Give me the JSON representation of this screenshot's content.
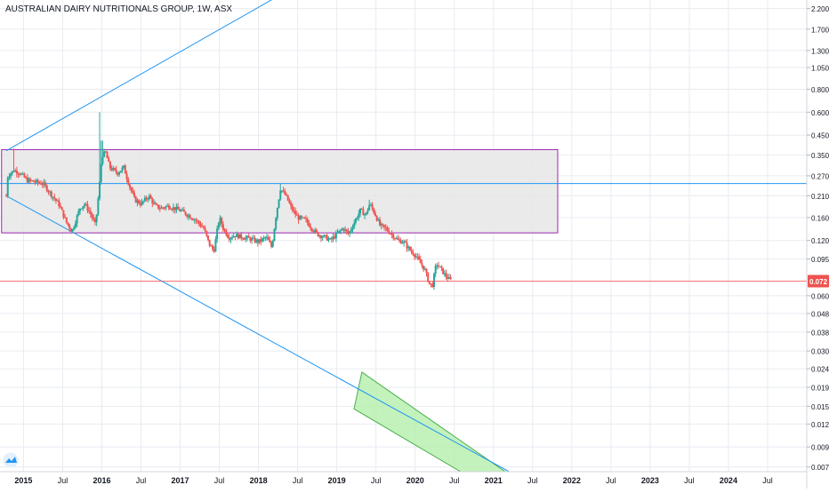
{
  "chart_data": {
    "type": "candlestick",
    "title": "AUSTRALIAN DAIRY NUTRITIONALS GROUP, 1W, ASX",
    "y_scale": "log",
    "ylim": [
      0.0066,
      2.45
    ],
    "xlim": [
      2014.7,
      2025.0
    ],
    "y_ticks": [
      {
        "v": 2.2,
        "label": "2.200"
      },
      {
        "v": 1.7,
        "label": "1.700"
      },
      {
        "v": 1.3,
        "label": "1.300"
      },
      {
        "v": 1.05,
        "label": "1.050"
      },
      {
        "v": 0.8,
        "label": "0.800"
      },
      {
        "v": 0.6,
        "label": "0.600"
      },
      {
        "v": 0.45,
        "label": "0.450"
      },
      {
        "v": 0.35,
        "label": "0.350"
      },
      {
        "v": 0.27,
        "label": "0.270"
      },
      {
        "v": 0.21,
        "label": "0.210"
      },
      {
        "v": 0.16,
        "label": "0.160"
      },
      {
        "v": 0.12,
        "label": "0.120"
      },
      {
        "v": 0.095,
        "label": "0.095"
      },
      {
        "v": 0.06,
        "label": "0.060"
      },
      {
        "v": 0.048,
        "label": "0.048"
      },
      {
        "v": 0.038,
        "label": "0.038"
      },
      {
        "v": 0.03,
        "label": "0.030"
      },
      {
        "v": 0.024,
        "label": "0.024"
      },
      {
        "v": 0.019,
        "label": "0.019"
      },
      {
        "v": 0.015,
        "label": "0.015"
      },
      {
        "v": 0.012,
        "label": "0.012"
      },
      {
        "v": 0.009,
        "label": "0.009"
      },
      {
        "v": 0.007,
        "label": "0.007"
      }
    ],
    "x_ticks": [
      {
        "t": 2015.0,
        "label": "2015"
      },
      {
        "t": 2015.5,
        "label": "Jul"
      },
      {
        "t": 2016.0,
        "label": "2016"
      },
      {
        "t": 2016.5,
        "label": "Jul"
      },
      {
        "t": 2017.0,
        "label": "2017"
      },
      {
        "t": 2017.5,
        "label": "Jul"
      },
      {
        "t": 2018.0,
        "label": "2018"
      },
      {
        "t": 2018.5,
        "label": "Jul"
      },
      {
        "t": 2019.0,
        "label": "2019"
      },
      {
        "t": 2019.5,
        "label": "Jul"
      },
      {
        "t": 2020.0,
        "label": "2020"
      },
      {
        "t": 2020.5,
        "label": "Jul"
      },
      {
        "t": 2021.0,
        "label": "2021"
      },
      {
        "t": 2021.5,
        "label": "Jul"
      },
      {
        "t": 2022.0,
        "label": "2022"
      },
      {
        "t": 2022.5,
        "label": "Jul"
      },
      {
        "t": 2023.0,
        "label": "2023"
      },
      {
        "t": 2023.5,
        "label": "Jul"
      },
      {
        "t": 2024.0,
        "label": "2024"
      },
      {
        "t": 2024.5,
        "label": "Jul"
      }
    ],
    "price_anchors": [
      [
        2014.78,
        0.21
      ],
      [
        2014.8,
        0.27
      ],
      [
        2014.88,
        0.29
      ],
      [
        2014.95,
        0.28
      ],
      [
        2015.05,
        0.255
      ],
      [
        2015.15,
        0.25
      ],
      [
        2015.25,
        0.245
      ],
      [
        2015.35,
        0.215
      ],
      [
        2015.45,
        0.19
      ],
      [
        2015.55,
        0.15
      ],
      [
        2015.62,
        0.135
      ],
      [
        2015.72,
        0.18
      ],
      [
        2015.78,
        0.19
      ],
      [
        2015.85,
        0.17
      ],
      [
        2015.92,
        0.145
      ],
      [
        2015.97,
        0.24
      ],
      [
        2016.0,
        0.35
      ],
      [
        2016.05,
        0.36
      ],
      [
        2016.1,
        0.3
      ],
      [
        2016.2,
        0.28
      ],
      [
        2016.28,
        0.3
      ],
      [
        2016.35,
        0.24
      ],
      [
        2016.42,
        0.2
      ],
      [
        2016.5,
        0.19
      ],
      [
        2016.6,
        0.21
      ],
      [
        2016.68,
        0.185
      ],
      [
        2016.75,
        0.18
      ],
      [
        2016.85,
        0.185
      ],
      [
        2016.92,
        0.18
      ],
      [
        2017.0,
        0.175
      ],
      [
        2017.1,
        0.165
      ],
      [
        2017.2,
        0.155
      ],
      [
        2017.3,
        0.14
      ],
      [
        2017.37,
        0.115
      ],
      [
        2017.43,
        0.105
      ],
      [
        2017.5,
        0.16
      ],
      [
        2017.55,
        0.14
      ],
      [
        2017.62,
        0.125
      ],
      [
        2017.7,
        0.128
      ],
      [
        2017.8,
        0.125
      ],
      [
        2017.9,
        0.122
      ],
      [
        2018.0,
        0.118
      ],
      [
        2018.1,
        0.125
      ],
      [
        2018.17,
        0.11
      ],
      [
        2018.22,
        0.16
      ],
      [
        2018.28,
        0.23
      ],
      [
        2018.35,
        0.21
      ],
      [
        2018.42,
        0.18
      ],
      [
        2018.5,
        0.16
      ],
      [
        2018.6,
        0.155
      ],
      [
        2018.68,
        0.14
      ],
      [
        2018.75,
        0.13
      ],
      [
        2018.85,
        0.125
      ],
      [
        2018.92,
        0.12
      ],
      [
        2019.0,
        0.13
      ],
      [
        2019.08,
        0.14
      ],
      [
        2019.15,
        0.13
      ],
      [
        2019.22,
        0.15
      ],
      [
        2019.3,
        0.175
      ],
      [
        2019.37,
        0.165
      ],
      [
        2019.42,
        0.19
      ],
      [
        2019.48,
        0.17
      ],
      [
        2019.55,
        0.145
      ],
      [
        2019.62,
        0.14
      ],
      [
        2019.7,
        0.13
      ],
      [
        2019.78,
        0.12
      ],
      [
        2019.85,
        0.118
      ],
      [
        2019.92,
        0.108
      ],
      [
        2020.0,
        0.1
      ],
      [
        2020.07,
        0.09
      ],
      [
        2020.12,
        0.084
      ],
      [
        2020.18,
        0.07
      ],
      [
        2020.22,
        0.068
      ],
      [
        2020.27,
        0.09
      ],
      [
        2020.32,
        0.085
      ],
      [
        2020.38,
        0.078
      ],
      [
        2020.43,
        0.074
      ],
      [
        2020.47,
        0.072
      ]
    ],
    "spikes": [
      {
        "t": 2014.88,
        "high": 0.38
      },
      {
        "t": 2015.97,
        "high": 0.6
      },
      {
        "t": 2016.0,
        "high": 0.42
      },
      {
        "t": 2018.28,
        "high": 0.245
      },
      {
        "t": 2019.42,
        "high": 0.2
      }
    ],
    "last_price": {
      "value": 0.072,
      "label": "0.072",
      "color": "#ef5350"
    },
    "horizontal_line": {
      "value": 0.245,
      "color": "#2196f3"
    },
    "rectangle": {
      "t_start": 2014.72,
      "t_end": 2021.82,
      "top": 0.375,
      "bottom": 0.132,
      "border": "#9c27b0",
      "fill": "#e6e6e6"
    },
    "trend_lines": [
      {
        "t1": 2014.78,
        "p1": 0.37,
        "t2": 2018.2,
        "p2": 2.5,
        "color": "#2196f3"
      },
      {
        "t1": 2014.78,
        "p1": 0.21,
        "t2": 2021.2,
        "p2": 0.0066,
        "color": "#2196f3"
      }
    ],
    "channel": {
      "corners": [
        [
          2019.32,
          0.023
        ],
        [
          2021.15,
          0.0066
        ],
        [
          2020.58,
          0.0066
        ],
        [
          2019.22,
          0.0145
        ]
      ],
      "fill": "#b9f0b0",
      "border": "#4caf50"
    },
    "colors": {
      "up": "#26a69a",
      "down": "#ef5350",
      "grid": "#e8ebf0",
      "axis_text": "#131722"
    }
  }
}
